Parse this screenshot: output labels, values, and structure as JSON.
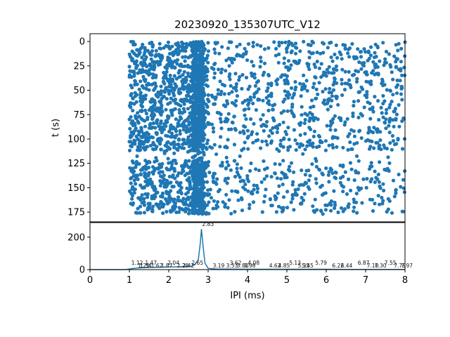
{
  "chart_data": [
    {
      "type": "scatter",
      "title": "20230920_135307UTC_V12",
      "ylabel": "t (s)",
      "xlabel": "",
      "xlim": [
        0,
        8
      ],
      "ylim": [
        185,
        -8
      ],
      "y_inverted": true,
      "yticks": [
        0,
        25,
        50,
        75,
        100,
        125,
        150,
        175
      ],
      "marker_color": "#1f77b4",
      "x_range_of_points": [
        1.0,
        8.0
      ],
      "t_range_of_points": [
        0,
        177
      ],
      "dense_band_ipi_ms": [
        2.6,
        2.9
      ],
      "sparse_time_gap_s": [
        112,
        122
      ]
    },
    {
      "type": "line",
      "xlabel": "IPI (ms)",
      "ylabel": "",
      "xlim": [
        0,
        8
      ],
      "ylim": [
        0,
        290
      ],
      "xticks": [
        0,
        1,
        2,
        3,
        4,
        5,
        6,
        7,
        8
      ],
      "yticks": [
        0,
        200
      ],
      "line_color": "#1f77b4",
      "series": [
        {
          "x": [
            0,
            0.9,
            1.0,
            1.2,
            1.4,
            1.6,
            1.8,
            2.0,
            2.2,
            2.4,
            2.55,
            2.65,
            2.75,
            2.8,
            2.83,
            2.87,
            2.92,
            3.0,
            3.2,
            3.5,
            4.0,
            4.5,
            5.0,
            5.5,
            6.0,
            6.5,
            7.0,
            7.5,
            8.0
          ],
          "y": [
            0,
            0,
            4,
            10,
            12,
            14,
            15,
            16,
            17,
            18,
            20,
            28,
            60,
            160,
            250,
            150,
            40,
            8,
            4,
            3,
            2,
            2,
            2,
            2,
            2,
            1,
            1,
            1,
            1
          ]
        }
      ],
      "peak_label": "2.83",
      "peak": {
        "x": 2.83,
        "y": 250
      },
      "annotation_labels": [
        {
          "x": 1.12,
          "text": "1.12"
        },
        {
          "x": 1.29,
          "text": "1.29"
        },
        {
          "x": 1.34,
          "text": "1.34"
        },
        {
          "x": 1.47,
          "text": "1.47"
        },
        {
          "x": 1.62,
          "text": "1.62"
        },
        {
          "x": 1.87,
          "text": "1.87"
        },
        {
          "x": 2.04,
          "text": "2.04"
        },
        {
          "x": 2.28,
          "text": "2.28"
        },
        {
          "x": 2.42,
          "text": "2.42"
        },
        {
          "x": 2.65,
          "text": "2.65"
        },
        {
          "x": 3.19,
          "text": "3.19"
        },
        {
          "x": 3.53,
          "text": "3.53"
        },
        {
          "x": 3.62,
          "text": "3.62"
        },
        {
          "x": 3.8,
          "text": "3.80"
        },
        {
          "x": 3.98,
          "text": "3.98"
        },
        {
          "x": 4.08,
          "text": "4.08"
        },
        {
          "x": 4.62,
          "text": "4.62"
        },
        {
          "x": 4.85,
          "text": "4.85"
        },
        {
          "x": 5.13,
          "text": "5.13"
        },
        {
          "x": 5.35,
          "text": "5.35"
        },
        {
          "x": 5.45,
          "text": "5.45"
        },
        {
          "x": 5.79,
          "text": "5.79"
        },
        {
          "x": 6.22,
          "text": "6.22"
        },
        {
          "x": 6.44,
          "text": "6.44"
        },
        {
          "x": 6.87,
          "text": "6.87"
        },
        {
          "x": 7.1,
          "text": "7.10"
        },
        {
          "x": 7.3,
          "text": "7.30"
        },
        {
          "x": 7.55,
          "text": "7.55"
        },
        {
          "x": 7.79,
          "text": "7.79"
        },
        {
          "x": 7.97,
          "text": "7.97"
        }
      ]
    }
  ]
}
